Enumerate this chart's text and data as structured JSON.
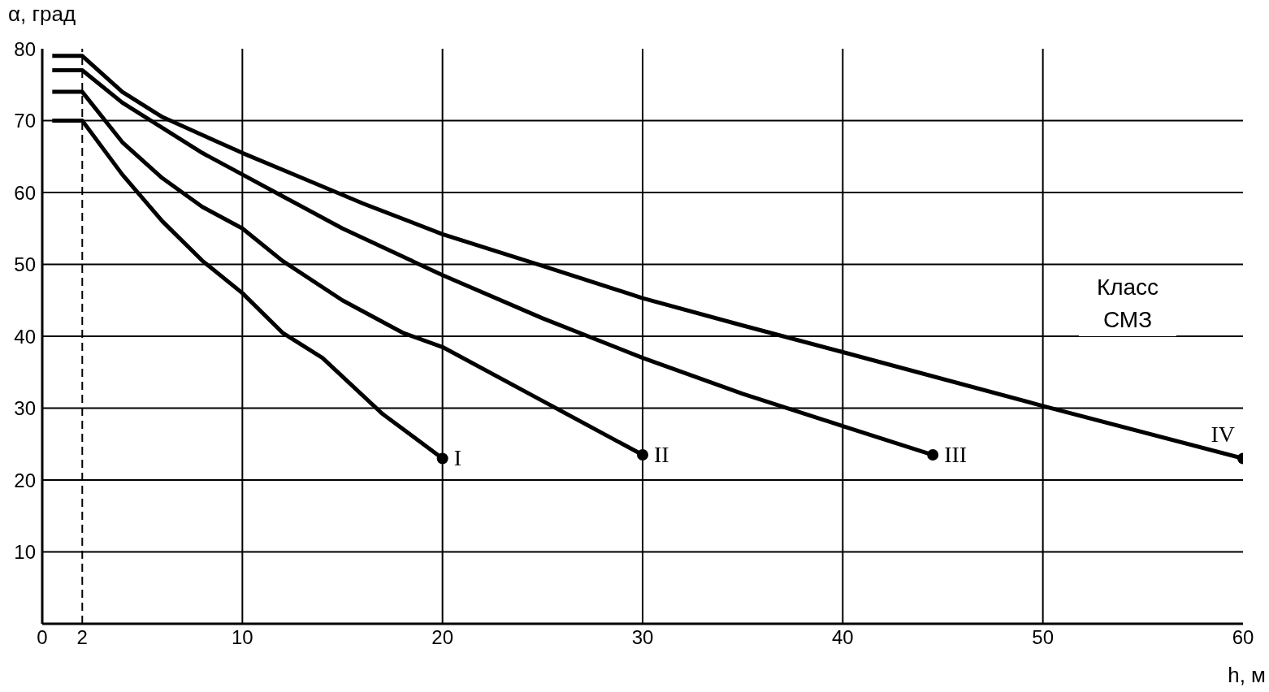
{
  "chart_data": {
    "type": "line",
    "xlabel": "h, м",
    "ylabel": "α, град",
    "legend_title": "Класс СМЗ",
    "xlim": [
      0,
      60
    ],
    "ylim": [
      0,
      80
    ],
    "xticks": [
      0,
      2,
      10,
      20,
      30,
      40,
      50,
      60
    ],
    "yticks": [
      10,
      20,
      30,
      40,
      50,
      60,
      70,
      80
    ],
    "grid": true,
    "line_style": "solid",
    "ref_lines": [
      {
        "axis": "x",
        "value": 2,
        "color": "#000000",
        "line_style": "dashed"
      }
    ],
    "series": [
      {
        "name": "I",
        "color": "#000000",
        "x": [
          0.5,
          2,
          4,
          6,
          8,
          10,
          12,
          14,
          17,
          20
        ],
        "values": [
          70,
          70,
          62.5,
          56,
          50.5,
          46,
          40.5,
          37,
          29.2,
          23
        ]
      },
      {
        "name": "II",
        "color": "#000000",
        "x": [
          0.5,
          2,
          4,
          6,
          8,
          10,
          12,
          15,
          18,
          20,
          25,
          30
        ],
        "values": [
          74,
          74,
          67,
          62,
          58,
          55,
          50.5,
          45,
          40.5,
          38.5,
          31,
          23.5
        ]
      },
      {
        "name": "III",
        "color": "#000000",
        "x": [
          0.5,
          2,
          4,
          6,
          8,
          10,
          12,
          15,
          20,
          25,
          30,
          35,
          40,
          44.5
        ],
        "values": [
          77,
          77,
          72.5,
          69,
          65.5,
          62.5,
          59.5,
          55,
          48.5,
          42.5,
          37,
          32,
          27.5,
          23.5
        ]
      },
      {
        "name": "IV",
        "color": "#000000",
        "x": [
          0.5,
          2,
          4,
          6,
          8,
          10,
          13,
          16,
          20,
          25,
          30,
          35,
          40,
          50,
          60
        ],
        "values": [
          79,
          79,
          74,
          70.5,
          68,
          65.5,
          62,
          58.5,
          54.2,
          49.8,
          45.3,
          41.5,
          37.8,
          30.3,
          23
        ]
      }
    ]
  }
}
